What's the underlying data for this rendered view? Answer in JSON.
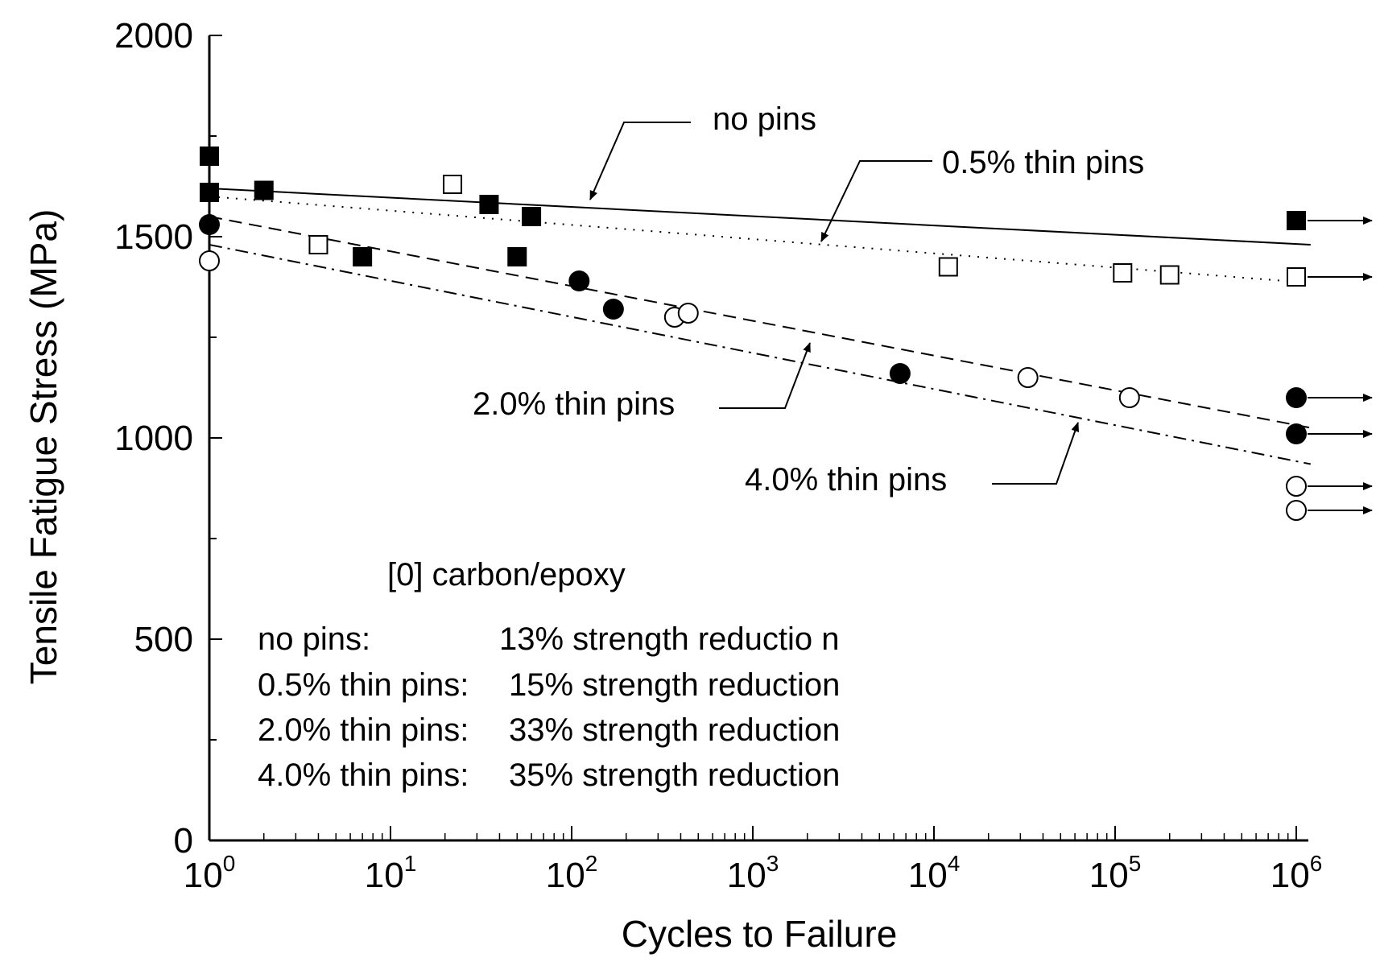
{
  "chart_data": {
    "type": "scatter",
    "title": "",
    "xlabel": "Cycles to Failure",
    "ylabel": "Tensile Fatigue Stress (MPa)",
    "xscale": "log",
    "xlim": [
      1,
      1000000
    ],
    "ylim": [
      0,
      2000
    ],
    "xticks": [
      {
        "base": "10",
        "exp": "0"
      },
      {
        "base": "10",
        "exp": "1"
      },
      {
        "base": "10",
        "exp": "2"
      },
      {
        "base": "10",
        "exp": "3"
      },
      {
        "base": "10",
        "exp": "4"
      },
      {
        "base": "10",
        "exp": "5"
      },
      {
        "base": "10",
        "exp": "6"
      }
    ],
    "yticks": [
      "0",
      "500",
      "1000",
      "1500",
      "2000"
    ],
    "grid": false,
    "series": [
      {
        "name": "no pins",
        "marker": "filled-square",
        "points": [
          [
            1,
            1700
          ],
          [
            1,
            1610
          ],
          [
            2,
            1615
          ],
          [
            35,
            1580
          ],
          [
            7,
            1450
          ],
          [
            60,
            1550
          ],
          [
            50,
            1450
          ],
          [
            1000000,
            1540
          ]
        ],
        "runouts": [
          [
            1000000,
            1540
          ]
        ],
        "fit": [
          [
            1,
            1620
          ],
          [
            1200000,
            1480
          ]
        ],
        "line_style": "solid"
      },
      {
        "name": "0.5% thin pins",
        "marker": "open-square",
        "points": [
          [
            22,
            1630
          ],
          [
            4,
            1480
          ],
          [
            12000,
            1425
          ],
          [
            110000,
            1410
          ],
          [
            200000,
            1405
          ],
          [
            1000000,
            1400
          ]
        ],
        "runouts": [
          [
            1000000,
            1400
          ]
        ],
        "fit": [
          [
            1,
            1600
          ],
          [
            1200000,
            1385
          ]
        ],
        "line_style": "dotted"
      },
      {
        "name": "2.0% thin pins",
        "marker": "filled-circle",
        "points": [
          [
            1,
            1530
          ],
          [
            110,
            1390
          ],
          [
            170,
            1320
          ],
          [
            6500,
            1160
          ],
          [
            1000000,
            1100
          ],
          [
            1000000,
            1010
          ]
        ],
        "runouts": [
          [
            1000000,
            1100
          ],
          [
            1000000,
            1010
          ]
        ],
        "fit": [
          [
            1,
            1550
          ],
          [
            1200000,
            1025
          ]
        ],
        "line_style": "dashed"
      },
      {
        "name": "4.0% thin pins",
        "marker": "open-circle",
        "points": [
          [
            1,
            1440
          ],
          [
            370,
            1300
          ],
          [
            440,
            1310
          ],
          [
            33000,
            1150
          ],
          [
            120000,
            1100
          ],
          [
            1000000,
            880
          ],
          [
            1000000,
            820
          ]
        ],
        "runouts": [
          [
            1000000,
            880
          ],
          [
            1000000,
            820
          ]
        ],
        "fit": [
          [
            1,
            1480
          ],
          [
            1200000,
            935
          ]
        ],
        "line_style": "dash-dot"
      }
    ],
    "annotations": {
      "material": "[0] carbon/epoxy",
      "reductions": [
        {
          "label": "no pins:",
          "value": "13% strength reductio n"
        },
        {
          "label": "0.5% thin pins:",
          "value": "15% strength reduction"
        },
        {
          "label": "2.0% thin pins:",
          "value": "33% strength reduction"
        },
        {
          "label": "4.0% thin pins:",
          "value": "35% strength reduction"
        }
      ]
    }
  }
}
